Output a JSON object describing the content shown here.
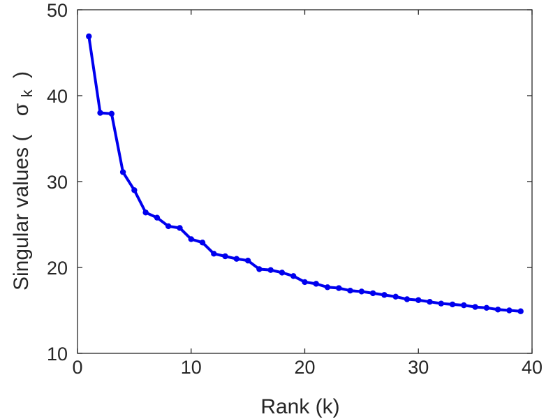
{
  "chart_data": {
    "type": "line",
    "title": "",
    "xlabel": "Rank (k)",
    "ylabel": {
      "prefix": "Singular values (",
      "symbol": "σ",
      "subscript": "k",
      "suffix": ")"
    },
    "xlim": [
      0,
      40
    ],
    "ylim": [
      10,
      50
    ],
    "xticks": [
      0,
      10,
      20,
      30,
      40
    ],
    "yticks": [
      10,
      20,
      30,
      40,
      50
    ],
    "xtick_labels": [
      "0",
      "10",
      "20",
      "30",
      "40"
    ],
    "ytick_labels": [
      "10",
      "20",
      "30",
      "40",
      "50"
    ],
    "grid": false,
    "series": [
      {
        "color": "#0000ee",
        "x": [
          1,
          2,
          3,
          4,
          5,
          6,
          7,
          8,
          9,
          10,
          11,
          12,
          13,
          14,
          15,
          16,
          17,
          18,
          19,
          20,
          21,
          22,
          23,
          24,
          25,
          26,
          27,
          28,
          29,
          30,
          31,
          32,
          33,
          34,
          35,
          36,
          37,
          38,
          39
        ],
        "y": [
          46.9,
          38.0,
          37.9,
          31.1,
          29.0,
          26.4,
          25.8,
          24.8,
          24.6,
          23.3,
          22.9,
          21.6,
          21.3,
          21.0,
          20.8,
          19.8,
          19.7,
          19.4,
          19.0,
          18.3,
          18.1,
          17.7,
          17.6,
          17.3,
          17.2,
          17.0,
          16.8,
          16.6,
          16.3,
          16.2,
          16.0,
          15.8,
          15.7,
          15.6,
          15.4,
          15.3,
          15.1,
          15.0,
          14.9
        ]
      }
    ]
  }
}
